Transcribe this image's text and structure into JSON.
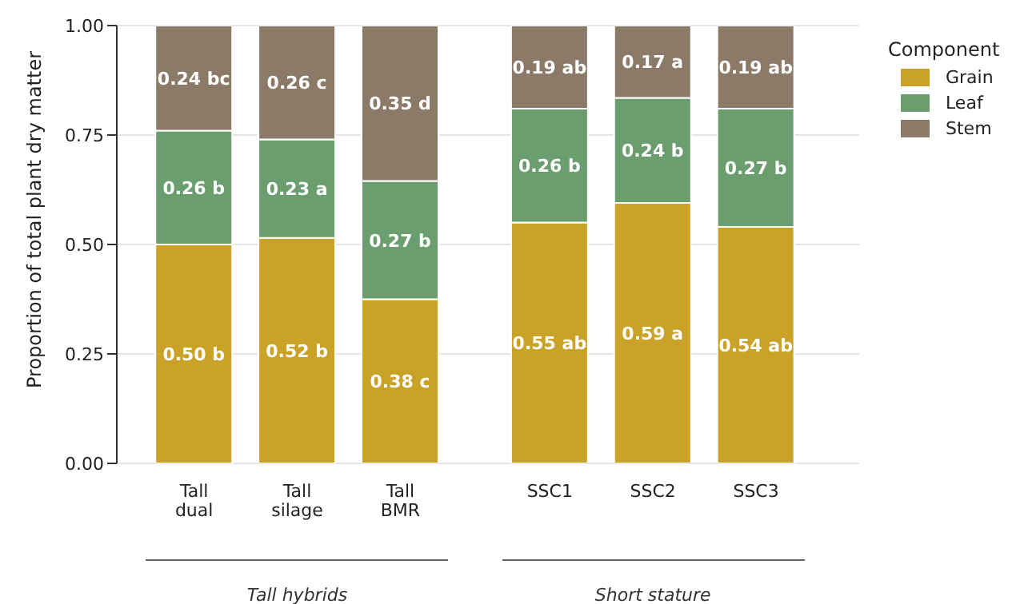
{
  "chart_data": {
    "type": "bar",
    "stacked": true,
    "ylabel": "Proportion of total plant dry matter",
    "legend_title": "Component",
    "legend": "right",
    "grid": "y",
    "categories": [
      "Tall dual",
      "Tall silage",
      "Tall BMR",
      "SSC1",
      "SSC2",
      "SSC3"
    ],
    "ylim": [
      0,
      1
    ],
    "yticks": [
      {
        "value": 0,
        "label": "0.00"
      },
      {
        "value": 0.25,
        "label": "0.25"
      },
      {
        "value": 0.5,
        "label": "0.50"
      },
      {
        "value": 0.75,
        "label": "0.75"
      },
      {
        "value": 1,
        "label": "1.00"
      }
    ],
    "series": [
      {
        "name": "Grain",
        "color": "#c9a227",
        "values": [
          0.5,
          0.515,
          0.375,
          0.55,
          0.595,
          0.54
        ],
        "value_labels": [
          "0.50 b",
          "0.52 b",
          "0.38 c",
          "0.55 ab",
          "0.59 a",
          "0.54 ab"
        ]
      },
      {
        "name": "Leaf",
        "color": "#6b9e6e",
        "values": [
          0.26,
          0.225,
          0.27,
          0.26,
          0.24,
          0.27
        ],
        "value_labels": [
          "0.26 b",
          "0.23 a",
          "0.27 b",
          "0.26 b",
          "0.24 b",
          "0.27 b"
        ]
      },
      {
        "name": "Stem",
        "color": "#8c7a68",
        "values": [
          0.24,
          0.26,
          0.355,
          0.19,
          0.165,
          0.19
        ],
        "value_labels": [
          "0.24 bc",
          "0.26 c",
          "0.35 d",
          "0.19 ab",
          "0.17 a",
          "0.19 ab"
        ]
      }
    ],
    "annotations": [
      "Tall hybrids",
      "Short stature"
    ]
  }
}
